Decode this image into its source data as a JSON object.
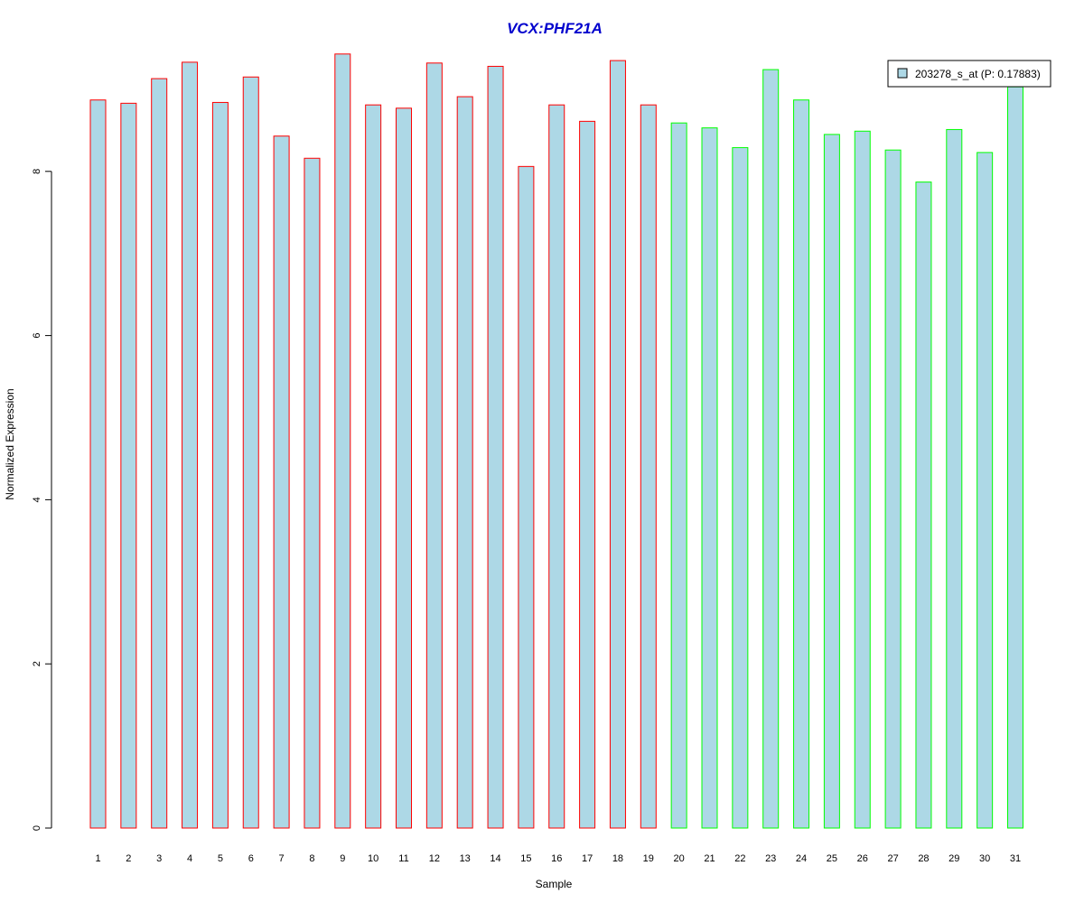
{
  "chart_data": {
    "type": "bar",
    "title": "VCX:PHF21A",
    "xlabel": "Sample",
    "ylabel": "Normalized Expression",
    "categories": [
      "1",
      "2",
      "3",
      "4",
      "5",
      "6",
      "7",
      "8",
      "9",
      "10",
      "11",
      "12",
      "13",
      "14",
      "15",
      "16",
      "17",
      "18",
      "19",
      "20",
      "21",
      "22",
      "23",
      "24",
      "25",
      "26",
      "27",
      "28",
      "29",
      "30",
      "31"
    ],
    "series": [
      {
        "name": "203278_s_at (P: 0.17883)",
        "values": [
          8.87,
          8.83,
          9.13,
          9.33,
          8.84,
          9.15,
          8.43,
          8.16,
          9.43,
          8.81,
          8.77,
          9.32,
          8.91,
          9.28,
          8.06,
          8.81,
          8.61,
          9.35,
          8.81,
          8.59,
          8.53,
          8.29,
          9.24,
          8.87,
          8.45,
          8.49,
          8.26,
          7.87,
          8.51,
          8.23,
          9.03
        ]
      }
    ],
    "ylim": [
      0,
      9.43
    ],
    "yticks": [
      0,
      2,
      4,
      6,
      8
    ],
    "legend": {
      "label": "203278_s_at (P: 0.17883)",
      "position": "top-right"
    },
    "grid": false,
    "colors": {
      "bar_fill": "#add8e6",
      "group1_border": "#ff0000",
      "group2_border": "#00ff00",
      "title": "#0000cd",
      "axis": "#000000"
    },
    "groups": [
      {
        "start": 1,
        "end": 19,
        "border": "#ff0000"
      },
      {
        "start": 20,
        "end": 31,
        "border": "#00ff00"
      }
    ]
  }
}
